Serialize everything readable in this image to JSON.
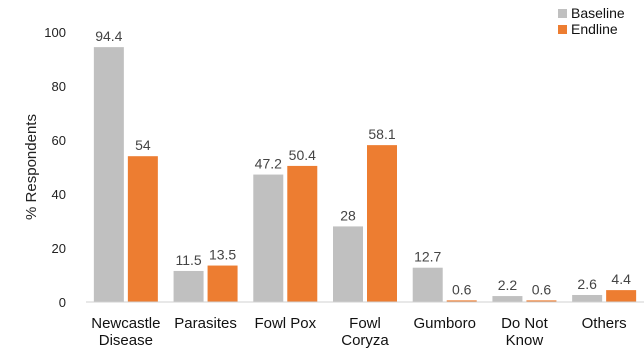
{
  "chart_data": {
    "type": "bar",
    "ylabel": "% Respondents",
    "xlabel": "",
    "ylim": [
      0,
      100
    ],
    "yticks": [
      0,
      20,
      40,
      60,
      80,
      100
    ],
    "grid": false,
    "legend_position": "top-right",
    "categories": [
      [
        "Newcastle",
        "Disease"
      ],
      [
        "Parasites"
      ],
      [
        "Fowl Pox"
      ],
      [
        "Fowl",
        "Coryza"
      ],
      [
        "Gumboro"
      ],
      [
        "Do Not",
        "Know"
      ],
      [
        "Others"
      ]
    ],
    "series": [
      {
        "name": "Baseline",
        "color": "#c0c0c0",
        "values": [
          94.4,
          11.5,
          47.2,
          28,
          12.7,
          2.2,
          2.6
        ]
      },
      {
        "name": "Endline",
        "color": "#ed7d31",
        "values": [
          54,
          13.5,
          50.4,
          58.1,
          0.6,
          0.6,
          4.4
        ]
      }
    ]
  }
}
